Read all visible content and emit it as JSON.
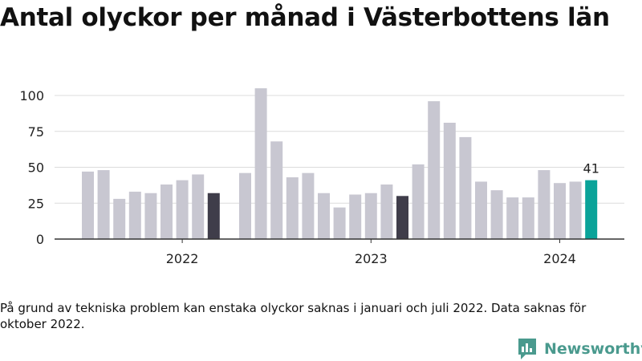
{
  "title": "Antal olyckor per månad i Västerbottens län",
  "note": "På grund av tekniska problem kan enstaka olyckor saknas i januari och juli 2022. Data saknas för oktober 2022.",
  "logo": {
    "text": "Newsworthy",
    "icon": "newsworthy-logo-icon",
    "color": "#4a9a8e"
  },
  "colors": {
    "bar": "#c8c7d1",
    "highlight": "#3f3d4a",
    "latest": "#0aa399",
    "axis": "#333333",
    "grid": "#dcdcdc"
  },
  "chart_data": {
    "type": "bar",
    "title": "Antal olyckor per månad i Västerbottens län",
    "xlabel": "",
    "ylabel": "",
    "ylim": [
      0,
      105
    ],
    "yticks": [
      "0",
      "25",
      "50",
      "75",
      "100"
    ],
    "xticks": [
      "2022",
      "2023",
      "2024"
    ],
    "grid": true,
    "legend": "none",
    "data_label": "41",
    "categories": [
      "2022-01",
      "2022-02",
      "2022-03",
      "2022-04",
      "2022-05",
      "2022-06",
      "2022-07",
      "2022-08",
      "2022-09",
      "2022-10",
      "2022-11",
      "2022-12",
      "2023-01",
      "2023-02",
      "2023-03",
      "2023-04",
      "2023-05",
      "2023-06",
      "2023-07",
      "2023-08",
      "2023-09",
      "2023-10",
      "2023-11",
      "2023-12",
      "2024-01",
      "2024-02",
      "2024-03",
      "2024-04",
      "2024-05",
      "2024-06",
      "2024-07",
      "2024-08",
      "2024-09",
      "2024-10"
    ],
    "values": [
      47,
      48,
      28,
      33,
      32,
      38,
      41,
      45,
      32,
      null,
      46,
      105,
      68,
      43,
      46,
      32,
      22,
      31,
      32,
      38,
      30,
      52,
      96,
      81,
      71,
      40,
      34,
      29,
      29,
      48,
      39,
      40,
      41,
      null
    ],
    "highlight": [
      "2022-09",
      "2023-09"
    ],
    "latest": "2024-09"
  }
}
